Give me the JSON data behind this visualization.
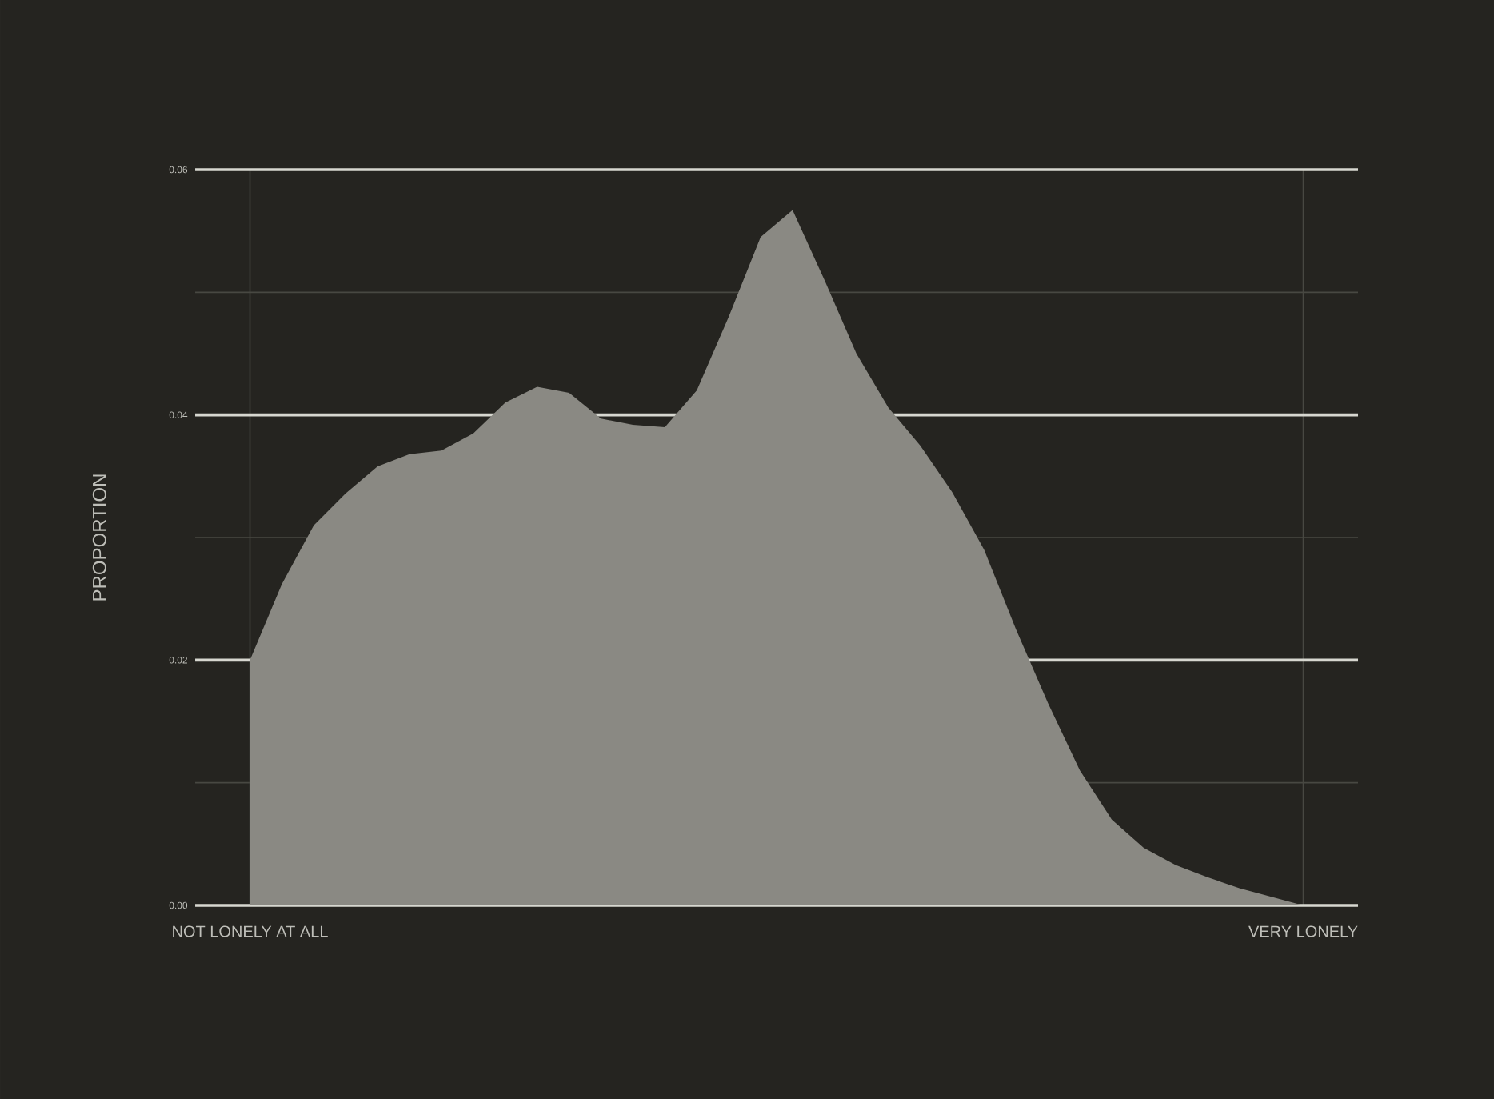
{
  "chart_data": {
    "type": "area",
    "ylabel": "PROPORTION",
    "categories": [
      "NOT LONELY AT ALL",
      null,
      null,
      null,
      null,
      null,
      null,
      null,
      null,
      null,
      null,
      null,
      null,
      null,
      null,
      null,
      null,
      null,
      null,
      null,
      null,
      null,
      null,
      null,
      null,
      null,
      null,
      null,
      null,
      null,
      null,
      null,
      null,
      "VERY LONELY"
    ],
    "values": [
      0.02,
      0.0262,
      0.031,
      0.0336,
      0.0358,
      0.0368,
      0.0371,
      0.0385,
      0.041,
      0.0423,
      0.0418,
      0.0397,
      0.0392,
      0.039,
      0.042,
      0.048,
      0.0545,
      0.0567,
      0.051,
      0.045,
      0.0406,
      0.0375,
      0.0337,
      0.029,
      0.0225,
      0.0165,
      0.011,
      0.007,
      0.0047,
      0.0033,
      0.0023,
      0.0014,
      0.0007,
      0.0
    ],
    "color": "#8a8983",
    "ylim": [
      0,
      0.06
    ],
    "yticks": [
      {
        "value": 0,
        "label": "0.00"
      },
      {
        "value": 0.01,
        "label": null
      },
      {
        "value": 0.02,
        "label": "0.02"
      },
      {
        "value": 0.03,
        "label": null
      },
      {
        "value": 0.04,
        "label": "0.04"
      },
      {
        "value": 0.05,
        "label": null
      },
      {
        "value": 0.06,
        "label": "0.06"
      }
    ],
    "grid": true
  }
}
